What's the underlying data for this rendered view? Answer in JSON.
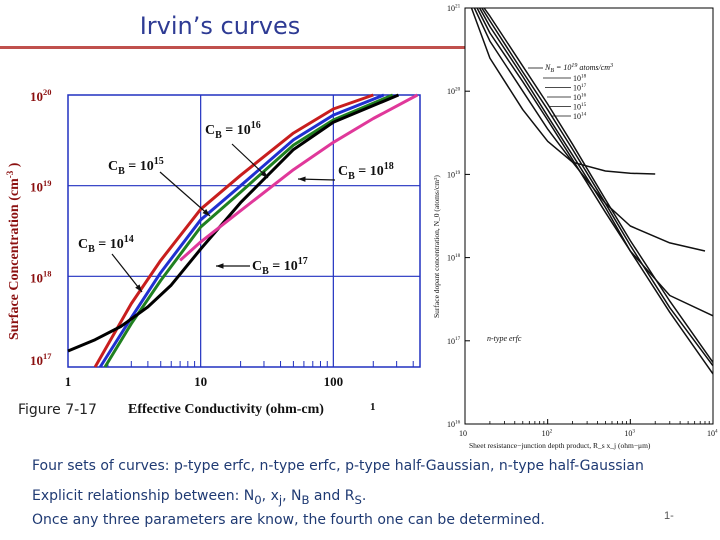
{
  "slide": {
    "title": "Irvin’s curves",
    "figure_label": "Figure 7-17",
    "slide_number": "1-",
    "bullets": [
      "Four sets of curves: p-type erfc, n-type erfc, p-type half-Gaussian, n-type half-Gaussian",
      "Explicit relationship between: N0, xj, NB and RS.",
      "Once any three parameters are know, the fourth one can be determined."
    ],
    "bullet_parts": {
      "line2_prefix": "Explicit relationship between: N",
      "line2_sub1": "0",
      "line2_mid1": ", x",
      "line2_sub2": "j",
      "line2_mid2": ", N",
      "line2_sub3": "B",
      "line2_mid3": " and R",
      "line2_sub4": "S",
      "line2_end": "."
    }
  },
  "colors": {
    "title": "#2e3b94",
    "title_rule": "#c0504d",
    "body_text": "#1f3a73",
    "left_chart_grid": "#2030c0",
    "left_axis_text": "#8b1010",
    "annotation_text": "#111111",
    "pink": "#e0389a",
    "red": "#c81e1e",
    "blue": "#2030d0",
    "green": "#208020",
    "black": "#000000"
  },
  "chart_data": [
    {
      "type": "line",
      "name": "left",
      "xscale": "log",
      "yscale": "log",
      "xlim": [
        1,
        450
      ],
      "ylim": [
        1e+17,
        1e+20
      ],
      "xlabel": "Effective  Conductivity  (ohm-cm)",
      "xlabel_suffix": "1",
      "ylabel": "Surface Concentration (cm",
      "ylabel_sup": "-3",
      "ylabel_end": " )",
      "x_ticks": [
        {
          "value": 1,
          "label": "1"
        },
        {
          "value": 10,
          "label": "10"
        },
        {
          "value": 100,
          "label": "100"
        }
      ],
      "y_ticks": [
        {
          "value": 1e+20,
          "base": "10",
          "exp": "20"
        },
        {
          "value": 1e+19,
          "base": "10",
          "exp": "19"
        },
        {
          "value": 1e+18,
          "base": "10",
          "exp": "18"
        },
        {
          "value": 1e+17,
          "base": "10",
          "exp": "17"
        }
      ],
      "grid": true,
      "series": [
        {
          "name": "C_B = 10^14",
          "color": "#c81e1e",
          "x": [
            1.6,
            3,
            5,
            10,
            20,
            50,
            100,
            200
          ],
          "y": [
            1e+17,
            5e+17,
            1.5e+18,
            5.5e+18,
            1.3e+19,
            3.8e+19,
            7e+19,
            1e+20
          ]
        },
        {
          "name": "C_B = 10^15",
          "color": "#2030d0",
          "x": [
            1.75,
            3,
            5,
            10,
            20,
            50,
            100,
            240
          ],
          "y": [
            1e+17,
            3.5e+17,
            1.1e+18,
            4.2e+18,
            1e+19,
            3.2e+19,
            6e+19,
            1e+20
          ]
        },
        {
          "name": "C_B = 10^16",
          "color": "#208020",
          "x": [
            1.9,
            3,
            5,
            10,
            20,
            50,
            100,
            280
          ],
          "y": [
            1e+17,
            3e+17,
            9e+17,
            3.5e+18,
            8.5e+18,
            2.8e+19,
            5.3e+19,
            1e+20
          ]
        },
        {
          "name": "C_B = 10^17",
          "color": "#000000",
          "x": [
            1.0,
            1.6,
            2.5,
            4,
            6,
            10,
            20,
            50,
            100,
            310
          ],
          "y": [
            1.5e+17,
            2e+17,
            2.8e+17,
            4.6e+17,
            8e+17,
            2e+18,
            6.5e+18,
            2.5e+19,
            5e+19,
            1e+20
          ]
        },
        {
          "name": "C_B = 10^18",
          "color": "#e0389a",
          "x": [
            7,
            10,
            20,
            50,
            100,
            200,
            430
          ],
          "y": [
            1.5e+18,
            2.4e+18,
            5.3e+18,
            1.5e+19,
            3e+19,
            5.5e+19,
            1e+20
          ]
        }
      ],
      "annotations": [
        {
          "text": "C",
          "sub": "B",
          "mid": " = 10",
          "sup": "16"
        },
        {
          "text": "C",
          "sub": "B",
          "mid": " = 10",
          "sup": "15"
        },
        {
          "text": "C",
          "sub": "B",
          "mid": " = 10",
          "sup": "18"
        },
        {
          "text": "C",
          "sub": "B",
          "mid": " = 10",
          "sup": "14"
        },
        {
          "text": "C",
          "sub": "B",
          "mid": " = 10",
          "sup": "17"
        }
      ]
    },
    {
      "type": "line",
      "name": "right",
      "xscale": "log",
      "yscale": "log",
      "xlim": [
        10,
        10000
      ],
      "ylim": [
        1e+16,
        1e+21
      ],
      "xlabel": "Sheet resistance−junction depth product, R_s x_j (ohm−μm)",
      "ylabel": "Surface dopant concentration, N_0 (atoms/cm³)",
      "x_ticks": [
        {
          "value": 10,
          "base": "10",
          "exp": ""
        },
        {
          "value": 100,
          "base": "10",
          "exp": "2"
        },
        {
          "value": 1000,
          "base": "10",
          "exp": "3"
        },
        {
          "value": 10000,
          "base": "10",
          "exp": "4"
        }
      ],
      "y_ticks": [
        {
          "value": 1e+21,
          "base": "10",
          "exp": "21"
        },
        {
          "value": 1e+20,
          "base": "10",
          "exp": "20"
        },
        {
          "value": 1e+19,
          "base": "10",
          "exp": "19"
        },
        {
          "value": 1e+18,
          "base": "10",
          "exp": "18"
        },
        {
          "value": 1e+17,
          "base": "10",
          "exp": "17"
        },
        {
          "value": 1e+16,
          "base": "10",
          "exp": "16"
        }
      ],
      "grid": false,
      "legend_title": "N_B = 10^19 atoms/cm³",
      "legend_title_parts": {
        "a": "N",
        "b": "B",
        "c": " = 10",
        "d": "19",
        "e": " atoms/cm",
        "f": "3"
      },
      "legend_entries": [
        {
          "base": "10",
          "exp": "18"
        },
        {
          "base": "10",
          "exp": "17"
        },
        {
          "base": "10",
          "exp": "16"
        },
        {
          "base": "10",
          "exp": "15"
        },
        {
          "base": "10",
          "exp": "14"
        }
      ],
      "annotation": "n-type erfc",
      "series": [
        {
          "name": "N_B = 10^19",
          "x": [
            12,
            20,
            50,
            100,
            200,
            500,
            1000,
            2000
          ],
          "y": [
            1e+21,
            2.5e+20,
            6e+19,
            2.5e+19,
            1.4e+19,
            1.1e+19,
            1.03e+19,
            1.01e+19
          ]
        },
        {
          "name": "N_B = 10^18",
          "x": [
            13,
            20,
            50,
            100,
            200,
            500,
            1000,
            3000,
            8000
          ],
          "y": [
            1e+21,
            4e+20,
            1e+20,
            3.5e+19,
            1.4e+19,
            4.5e+18,
            2.4e+18,
            1.5e+18,
            1.2e+18
          ]
        },
        {
          "name": "N_B = 10^17",
          "x": [
            14,
            20,
            50,
            100,
            200,
            500,
            1000,
            3000,
            10000
          ],
          "y": [
            1e+21,
            5e+20,
            1.3e+20,
            4.5e+19,
            1.5e+19,
            3.5e+18,
            1.2e+18,
            3.5e+17,
            2e+17
          ]
        },
        {
          "name": "N_B = 10^16",
          "x": [
            15,
            20,
            50,
            100,
            200,
            500,
            1000,
            3000,
            10000
          ],
          "y": [
            1e+21,
            6e+20,
            1.5e+20,
            5e+19,
            1.7e+19,
            4e+18,
            1.2e+18,
            2.2e+17,
            4e+16
          ]
        },
        {
          "name": "N_B = 10^15",
          "x": [
            16,
            20,
            50,
            100,
            200,
            500,
            1000,
            3000,
            10000
          ],
          "y": [
            1e+21,
            7e+20,
            1.7e+20,
            6e+19,
            2e+19,
            4.5e+18,
            1.4e+18,
            2.5e+17,
            5e+16
          ]
        },
        {
          "name": "N_B = 10^14",
          "x": [
            17,
            20,
            50,
            100,
            200,
            500,
            1000,
            3000,
            10000
          ],
          "y": [
            1e+21,
            8e+20,
            2e+20,
            7e+19,
            2.3e+19,
            5e+18,
            1.6e+18,
            3e+17,
            5.5e+16
          ]
        }
      ]
    }
  ]
}
